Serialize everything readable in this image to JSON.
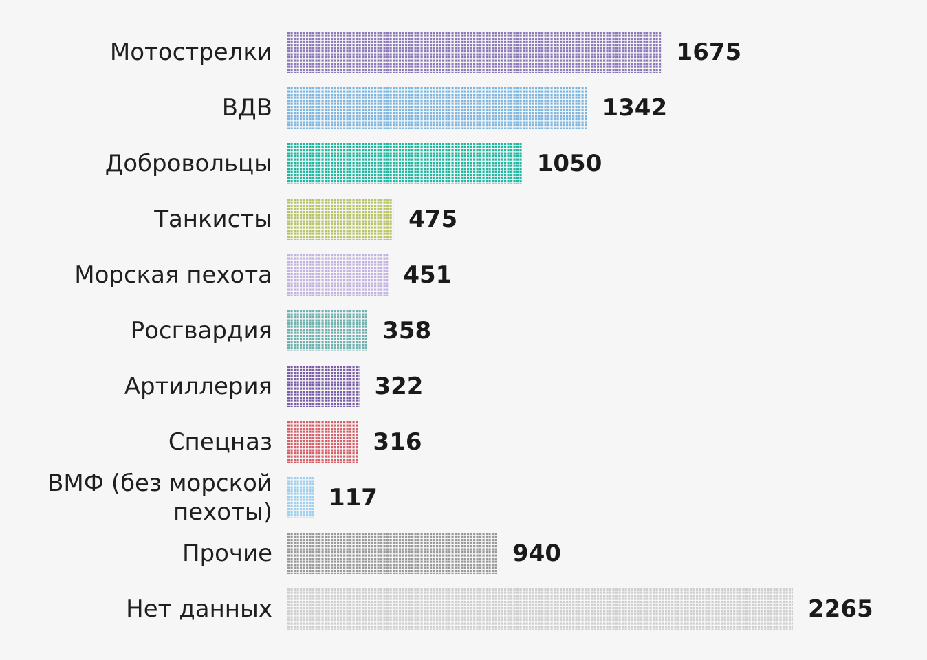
{
  "chart_data": {
    "type": "bar",
    "orientation": "horizontal",
    "grid": false,
    "categories": [
      "Мотострелки",
      "ВДВ",
      "Добровольцы",
      "Танкисты",
      "Морская пехота",
      "Росгвардия",
      "Артиллерия",
      "Спецназ",
      "ВМФ (без морской пехоты)",
      "Прочие",
      "Нет данных"
    ],
    "category_lines": [
      [
        "Мотострелки"
      ],
      [
        "ВДВ"
      ],
      [
        "Добровольцы"
      ],
      [
        "Танкисты"
      ],
      [
        "Морская пехота"
      ],
      [
        "Росгвардия"
      ],
      [
        "Артиллерия"
      ],
      [
        "Спецназ"
      ],
      [
        "ВМФ (без морской",
        "пехоты)"
      ],
      [
        "Прочие"
      ],
      [
        "Нет данных"
      ]
    ],
    "values": [
      1675,
      1342,
      1050,
      475,
      451,
      358,
      322,
      316,
      117,
      940,
      2265
    ],
    "bar_colors": [
      "#8d7ab8",
      "#7fb6df",
      "#22b8a0",
      "#b9c468",
      "#c2b3e0",
      "#6fb1ae",
      "#7a5fa8",
      "#d6616b",
      "#9fd0ee",
      "#9a9a9a",
      "#cfcfcf"
    ]
  }
}
